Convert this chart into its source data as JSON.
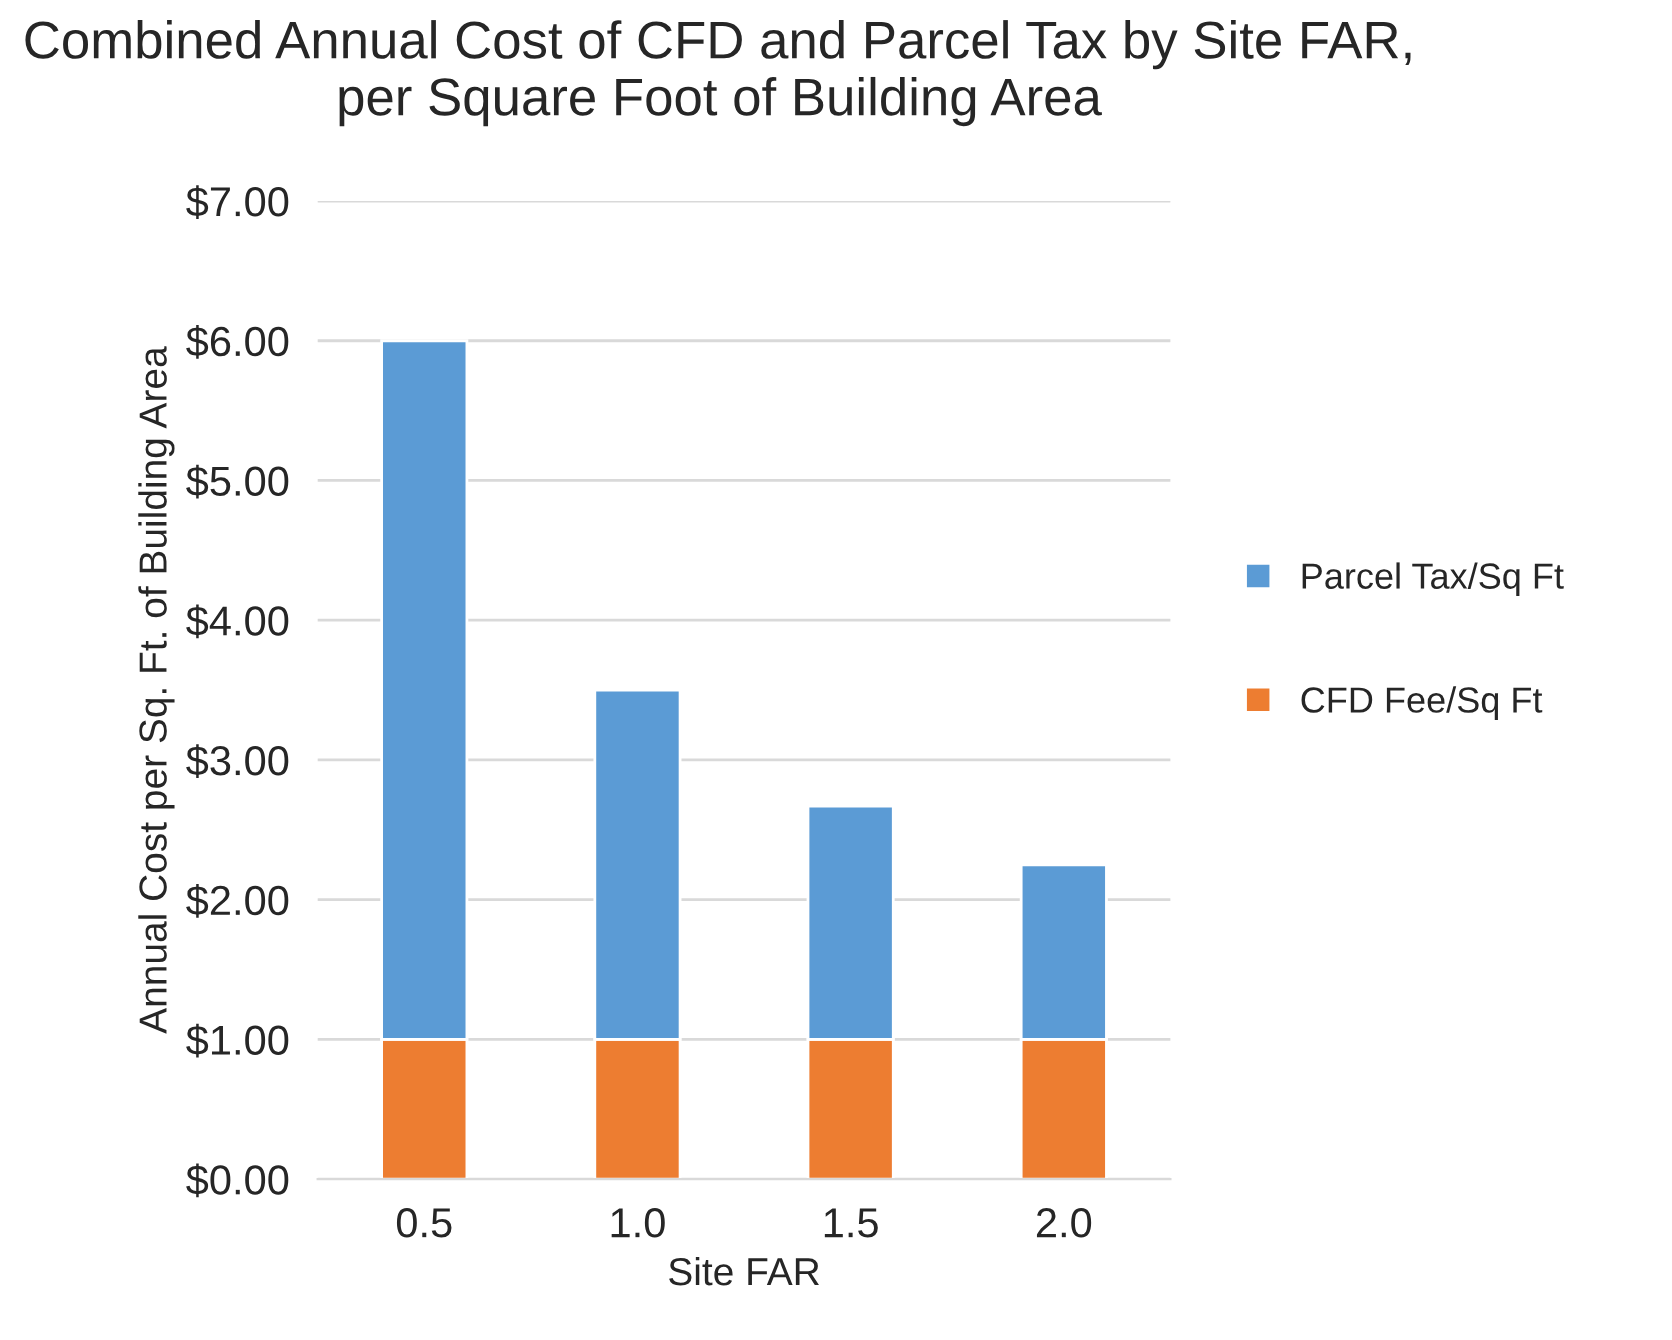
{
  "chart_data": {
    "type": "bar",
    "title": "Combined Annual Cost of CFD and Parcel Tax by Site FAR, per Square Foot of Building Area",
    "xlabel": "Site FAR",
    "ylabel": "Annual Cost per Sq. Ft. of Building Area",
    "categories": [
      "0.5",
      "1.0",
      "1.5",
      "2.0"
    ],
    "stacked": true,
    "series": [
      {
        "name": "CFD Fee/Sq Ft",
        "color": "#ed7d31",
        "values": [
          1.0,
          1.0,
          1.0,
          1.0
        ]
      },
      {
        "name": "Parcel Tax/Sq Ft",
        "color": "#5b9bd5",
        "values": [
          5.0,
          2.5,
          1.67,
          1.25
        ]
      }
    ],
    "ylim": [
      0,
      7
    ],
    "yticks": [
      {
        "value": 0,
        "label": "$0.00"
      },
      {
        "value": 1,
        "label": "$1.00"
      },
      {
        "value": 2,
        "label": "$2.00"
      },
      {
        "value": 3,
        "label": "$3.00"
      },
      {
        "value": 4,
        "label": "$4.00"
      },
      {
        "value": 5,
        "label": "$5.00"
      },
      {
        "value": 6,
        "label": "$6.00"
      },
      {
        "value": 7,
        "label": "$7.00"
      }
    ],
    "grid": "y",
    "legend": "right"
  }
}
